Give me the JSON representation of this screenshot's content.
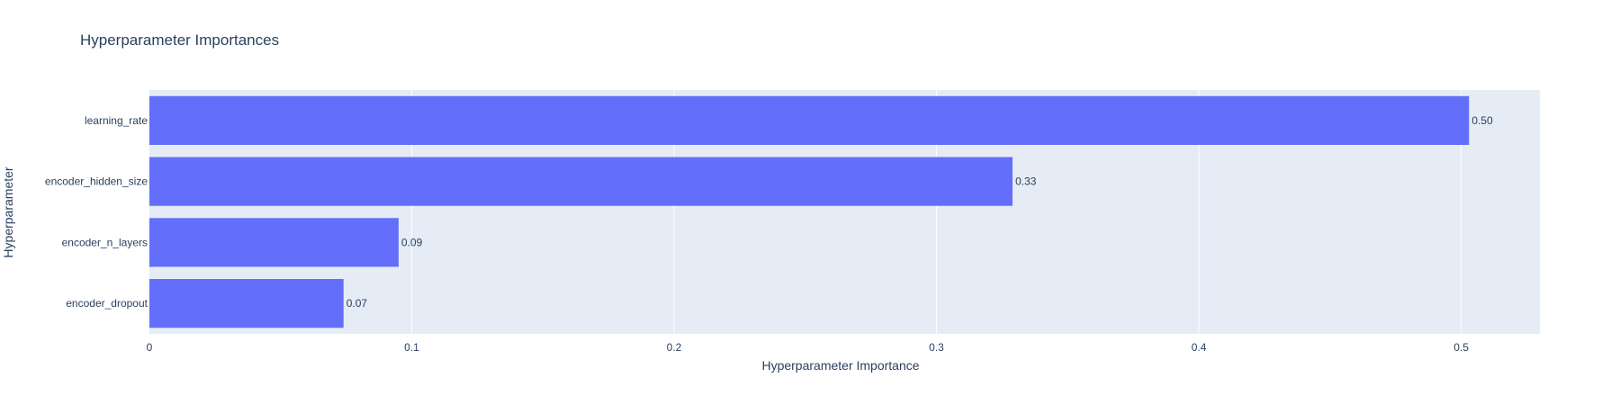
{
  "chart_data": {
    "type": "bar",
    "orientation": "horizontal",
    "title": "Hyperparameter Importances",
    "xlabel": "Hyperparameter Importance",
    "ylabel": "Hyperparameter",
    "categories": [
      "learning_rate",
      "encoder_hidden_size",
      "encoder_n_layers",
      "encoder_dropout"
    ],
    "values": [
      0.503,
      0.329,
      0.095,
      0.074
    ],
    "data_labels": [
      "0.50",
      "0.33",
      "0.09",
      "0.07"
    ],
    "xlim": [
      0,
      0.53
    ],
    "x_ticks": [
      0,
      0.1,
      0.2,
      0.3,
      0.4,
      0.5
    ],
    "x_tick_labels": [
      "0",
      "0.1",
      "0.2",
      "0.3",
      "0.4",
      "0.5"
    ],
    "grid": true,
    "legend": "none",
    "colors": {
      "bar": "#636efa",
      "plot_background": "#e5ecf6",
      "gridline": "#ffffff",
      "text": "#2a3f5f"
    }
  }
}
